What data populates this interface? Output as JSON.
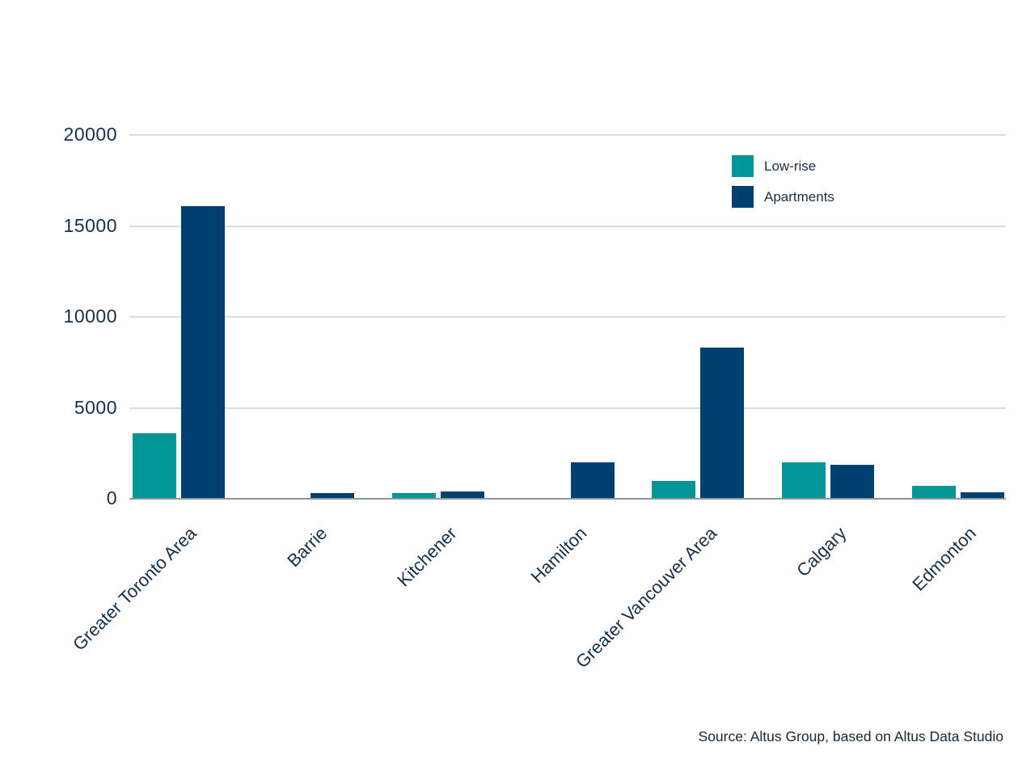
{
  "chart_data": {
    "type": "bar",
    "title": "",
    "xlabel": "",
    "ylabel": "",
    "categories": [
      "Greater Toronto Area",
      "Barrie",
      "Kitchener",
      "Hamilton",
      "Greater Vancouver Area",
      "Calgary",
      "Edmonton"
    ],
    "series": [
      {
        "name": "Low-rise",
        "color": "#009698",
        "values": [
          3600,
          0,
          325,
          0,
          1000,
          2000,
          700
        ]
      },
      {
        "name": "Apartments",
        "color": "#004071",
        "values": [
          16100,
          325,
          400,
          2000,
          8300,
          1850,
          350
        ]
      }
    ],
    "ylim": [
      0,
      20000
    ],
    "yticks": [
      0,
      5000,
      10000,
      15000,
      20000
    ],
    "grid": true,
    "legend_position": "top-right"
  },
  "legend": {
    "items": [
      {
        "label": "Low-rise",
        "color": "#009698"
      },
      {
        "label": "Apartments",
        "color": "#004071"
      }
    ]
  },
  "source": {
    "text": "Source: Altus Group, based on Altus Data Studio"
  },
  "colors": {
    "lowrise": "#009698",
    "apartments": "#004071",
    "axis_text": "#14304a",
    "gridline": "#d9dde1",
    "axis_line": "#8a96a0",
    "background": "#ffffff"
  }
}
